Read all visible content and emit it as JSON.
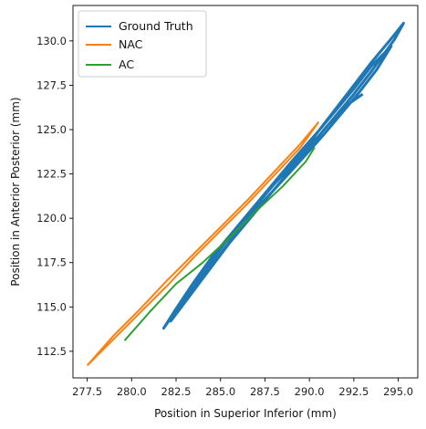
{
  "chart_data": {
    "type": "line",
    "xlabel": "Position in Superior Inferior (mm)",
    "ylabel": "Position in Anterior Posterior (mm)",
    "xlim": [
      276.7,
      296.1
    ],
    "ylim": [
      111.0,
      132.0
    ],
    "xticks": [
      277.5,
      280.0,
      282.5,
      285.0,
      287.5,
      290.0,
      292.5,
      295.0
    ],
    "xtick_labels": [
      "277.5",
      "280.0",
      "282.5",
      "285.0",
      "287.5",
      "290.0",
      "292.5",
      "295.0"
    ],
    "yticks": [
      112.5,
      115.0,
      117.5,
      120.0,
      122.5,
      125.0,
      127.5,
      130.0
    ],
    "ytick_labels": [
      "112.5",
      "115.0",
      "117.5",
      "120.0",
      "122.5",
      "125.0",
      "127.5",
      "130.0"
    ],
    "grid": false,
    "legend_position": "top-left",
    "series": [
      {
        "name": "Ground Truth",
        "color": "#1f77b4",
        "x": [
          281.8,
          282.5,
          283.5,
          285.0,
          286.5,
          288.0,
          289.5,
          290.5,
          291.5,
          292.5,
          293.5,
          294.5,
          295.3,
          294.8,
          293.5,
          292.5,
          291.5,
          290.5,
          289.5,
          288.5,
          287.5,
          286.5,
          285.5,
          284.5,
          283.5,
          282.5,
          281.8,
          282.3,
          283.0,
          284.5,
          286.0,
          287.5,
          289.0,
          290.5,
          291.5,
          292.5,
          293.5,
          294.6,
          293.8,
          292.8,
          291.8,
          290.8,
          290.0,
          289.0,
          288.0,
          287.0,
          286.0,
          285.0,
          284.0,
          283.0,
          282.2,
          282.8,
          284.0,
          285.5,
          287.0,
          288.5,
          290.0,
          291.0,
          292.0,
          293.0
        ],
        "y": [
          113.8,
          114.8,
          116.3,
          118.3,
          120.1,
          121.9,
          123.5,
          124.9,
          126.2,
          127.5,
          128.8,
          130.0,
          131.0,
          130.1,
          128.3,
          127.0,
          125.8,
          124.6,
          123.6,
          122.5,
          121.4,
          120.2,
          119.0,
          117.8,
          116.4,
          114.9,
          113.8,
          114.5,
          115.5,
          117.6,
          119.6,
          121.4,
          123.2,
          124.9,
          126.1,
          127.3,
          128.6,
          129.7,
          128.4,
          127.1,
          125.9,
          124.7,
          123.8,
          122.7,
          121.6,
          120.5,
          119.3,
          118.0,
          116.7,
          115.4,
          114.2,
          115.0,
          116.6,
          118.6,
          120.4,
          122.2,
          124.0,
          125.2,
          126.3,
          127.0
        ]
      },
      {
        "name": "NAC",
        "color": "#ff7f0e",
        "x": [
          277.5,
          279.0,
          280.5,
          282.0,
          283.5,
          285.0,
          286.5,
          288.0,
          289.5,
          290.5,
          289.5,
          288.0,
          286.5,
          285.0,
          283.5,
          282.0,
          280.5,
          279.0,
          277.5
        ],
        "y": [
          111.7,
          113.4,
          114.9,
          116.5,
          118.0,
          119.5,
          121.0,
          122.6,
          124.2,
          125.4,
          124.0,
          122.4,
          120.8,
          119.3,
          117.8,
          116.2,
          114.7,
          113.2,
          111.7
        ]
      },
      {
        "name": "AC",
        "color": "#2ca02c",
        "x": [
          279.6,
          281.0,
          282.5,
          284.0,
          285.5,
          287.0,
          288.5,
          289.8,
          290.3
        ],
        "y": [
          113.1,
          114.7,
          116.3,
          117.5,
          118.9,
          120.4,
          121.8,
          123.2,
          124.0
        ]
      }
    ]
  }
}
